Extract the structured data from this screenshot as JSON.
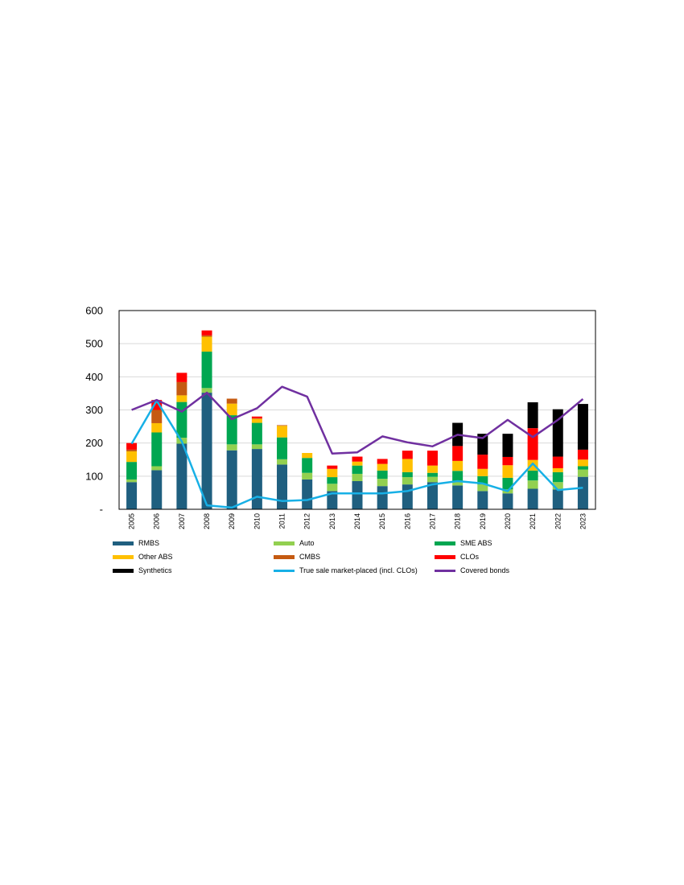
{
  "chart_data": {
    "type": "bar",
    "stacked": true,
    "categories": [
      "2005",
      "2006",
      "2007",
      "2008",
      "2009",
      "2010",
      "2011",
      "2012",
      "2013",
      "2014",
      "2015",
      "2016",
      "2017",
      "2018",
      "2019",
      "2020",
      "2021",
      "2022",
      "2023"
    ],
    "ylim": [
      0,
      600
    ],
    "yticks": [
      0,
      100,
      200,
      300,
      400,
      500,
      600
    ],
    "ytick_labels": [
      "-",
      "100",
      "200",
      "300",
      "400",
      "500",
      "600"
    ],
    "grid": true,
    "legend_position": "bottom",
    "series": [
      {
        "name": "RMBS",
        "kind": "bar",
        "color": "#1F5F7F",
        "values": [
          82,
          118,
          198,
          352,
          178,
          182,
          135,
          90,
          55,
          85,
          70,
          75,
          82,
          72,
          55,
          48,
          62,
          60,
          98
        ]
      },
      {
        "name": "Auto",
        "kind": "bar",
        "color": "#92D050",
        "values": [
          8,
          12,
          18,
          14,
          18,
          14,
          16,
          20,
          22,
          22,
          22,
          22,
          16,
          14,
          20,
          12,
          25,
          22,
          22
        ]
      },
      {
        "name": "SME ABS",
        "kind": "bar",
        "color": "#00A651",
        "values": [
          53,
          102,
          108,
          110,
          88,
          65,
          66,
          45,
          20,
          25,
          25,
          15,
          12,
          30,
          25,
          35,
          30,
          30,
          10
        ]
      },
      {
        "name": "Other ABS",
        "kind": "bar",
        "color": "#FFC000",
        "values": [
          32,
          28,
          20,
          45,
          35,
          12,
          35,
          15,
          25,
          12,
          20,
          40,
          22,
          30,
          22,
          38,
          32,
          12,
          20
        ]
      },
      {
        "name": "CMBS",
        "kind": "bar",
        "color": "#C55A11",
        "values": [
          5,
          40,
          40,
          4,
          15,
          2,
          2,
          0,
          0,
          0,
          0,
          0,
          0,
          0,
          0,
          0,
          0,
          0,
          0
        ]
      },
      {
        "name": "CLOs",
        "kind": "bar",
        "color": "#FF0000",
        "values": [
          20,
          30,
          28,
          15,
          0,
          5,
          0,
          0,
          10,
          15,
          15,
          25,
          45,
          45,
          43,
          25,
          96,
          35,
          30
        ]
      },
      {
        "name": "Synthetics",
        "kind": "bar",
        "color": "#000000",
        "values": [
          0,
          0,
          0,
          0,
          0,
          0,
          0,
          0,
          0,
          0,
          0,
          0,
          0,
          70,
          63,
          70,
          78,
          143,
          138
        ]
      },
      {
        "name": "True sale market-placed (incl. CLOs)",
        "kind": "line",
        "color": "#17B0E6",
        "values": [
          198,
          328,
          205,
          12,
          5,
          38,
          25,
          28,
          48,
          48,
          48,
          55,
          75,
          85,
          78,
          55,
          138,
          58,
          65
        ]
      },
      {
        "name": "Covered bonds",
        "kind": "line",
        "color": "#7030A0",
        "values": [
          300,
          330,
          295,
          352,
          272,
          305,
          370,
          340,
          168,
          172,
          220,
          202,
          190,
          225,
          215,
          270,
          218,
          270,
          333
        ]
      }
    ]
  }
}
